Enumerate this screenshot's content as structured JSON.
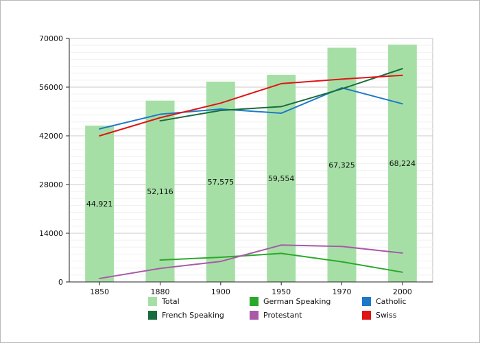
{
  "chart_data": {
    "type": "bar+line",
    "title": "",
    "xlabel": "",
    "ylabel": "",
    "categories": [
      "1850",
      "1880",
      "1900",
      "1950",
      "1970",
      "2000"
    ],
    "ylim": [
      0,
      70000
    ],
    "yticks": [
      0,
      14000,
      28000,
      42000,
      56000,
      70000
    ],
    "grid": "horizontal",
    "bars": {
      "name": "Total",
      "color": "#a6dfa6",
      "values": [
        44921,
        52116,
        57575,
        59554,
        67325,
        68224
      ],
      "labels": [
        "44,921",
        "52,116",
        "57,575",
        "59,554",
        "67,325",
        "68,224"
      ]
    },
    "series": [
      {
        "name": "German Speaking",
        "color": "#2aa82a",
        "values": [
          null,
          6300,
          7100,
          8200,
          5800,
          2800
        ]
      },
      {
        "name": "Catholic",
        "color": "#1e78c8",
        "values": [
          44000,
          48200,
          49700,
          48500,
          55800,
          51200
        ]
      },
      {
        "name": "French Speaking",
        "color": "#186c3d",
        "values": [
          null,
          46300,
          49300,
          50400,
          55500,
          61300
        ]
      },
      {
        "name": "Protestant",
        "color": "#a85aa8",
        "values": [
          1000,
          3900,
          5900,
          10600,
          10200,
          8300
        ]
      },
      {
        "name": "Swiss",
        "color": "#e01414",
        "values": [
          42000,
          47200,
          51400,
          57000,
          58300,
          59400
        ]
      }
    ],
    "legend": {
      "position": "bottom",
      "items": [
        {
          "label": "Total",
          "color": "#a6dfa6"
        },
        {
          "label": "German Speaking",
          "color": "#2aa82a"
        },
        {
          "label": "Catholic",
          "color": "#1e78c8"
        },
        {
          "label": "French Speaking",
          "color": "#186c3d"
        },
        {
          "label": "Protestant",
          "color": "#a85aa8"
        },
        {
          "label": "Swiss",
          "color": "#e01414"
        }
      ]
    }
  }
}
